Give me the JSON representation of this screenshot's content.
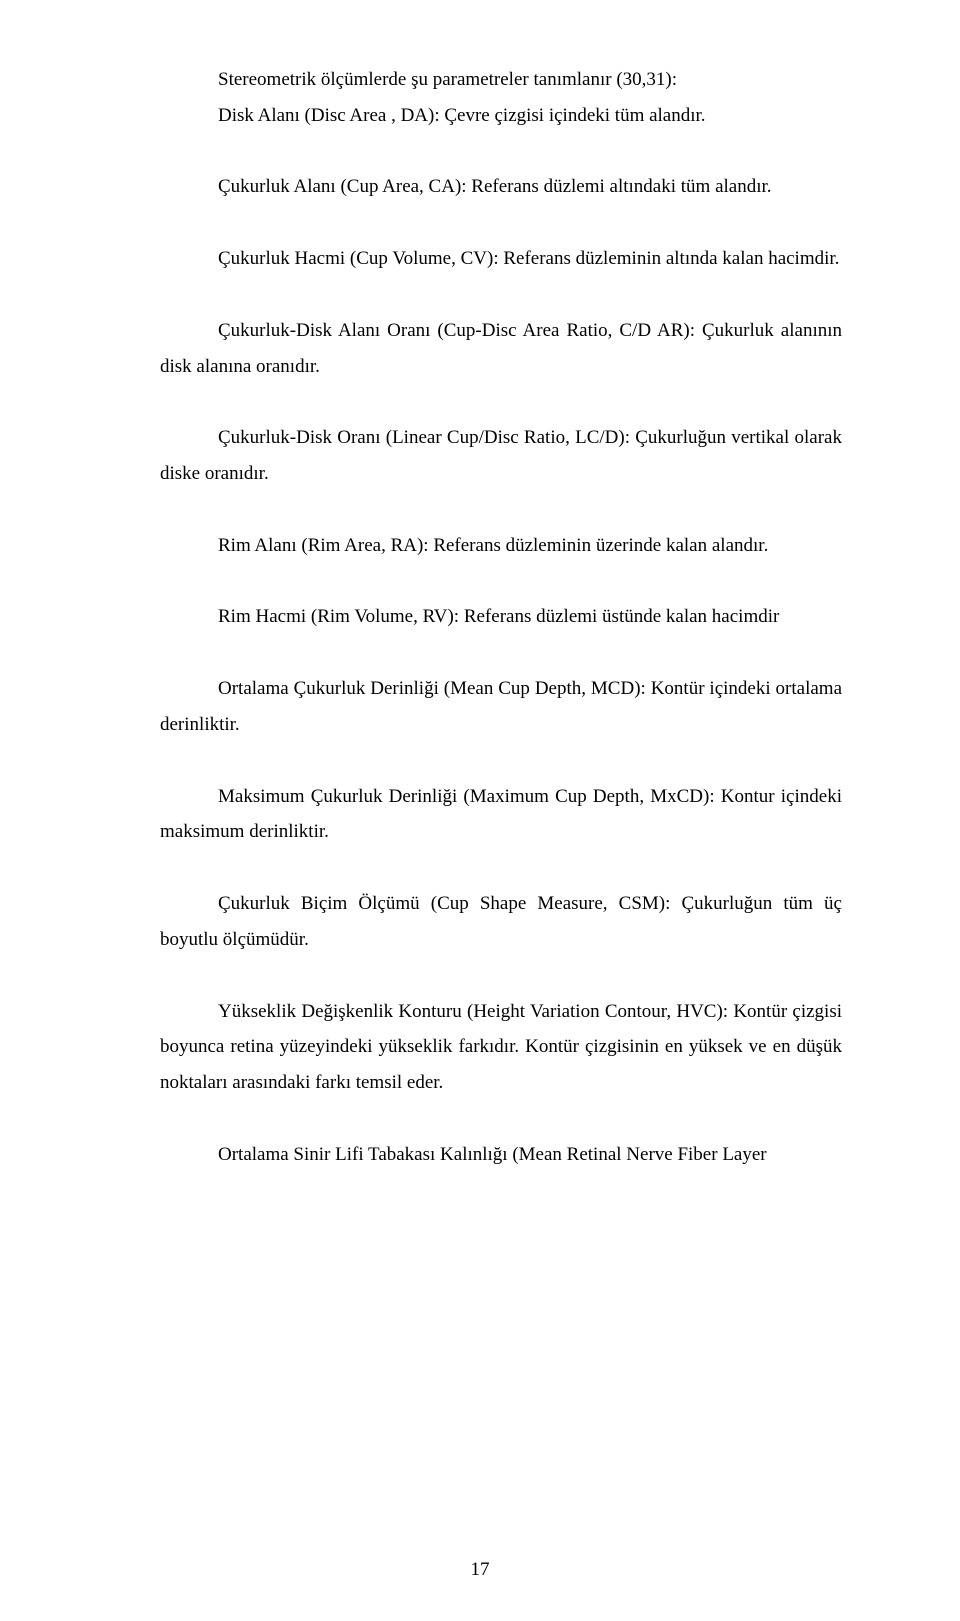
{
  "page": {
    "number": "17",
    "paragraphs": {
      "p1a": "Stereometrik ölçümlerde şu parametreler tanımlanır (30,31):",
      "p1b": "Disk Alanı (Disc Area , DA): Çevre çizgisi içindeki tüm alandır.",
      "p2": "Çukurluk Alanı (Cup Area, CA): Referans düzlemi altındaki tüm alandır.",
      "p3": "Çukurluk Hacmi (Cup Volume, CV): Referans düzleminin altında kalan hacimdir.",
      "p4": "Çukurluk-Disk Alanı Oranı (Cup-Disc Area Ratio, C/D AR): Çukurluk alanının disk alanına oranıdır.",
      "p5": "Çukurluk-Disk Oranı (Linear Cup/Disc Ratio, LC/D): Çukurluğun vertikal olarak diske oranıdır.",
      "p6": "Rim Alanı (Rim Area, RA): Referans düzleminin üzerinde kalan alandır.",
      "p7": "Rim Hacmi (Rim Volume, RV): Referans düzlemi üstünde kalan hacimdir",
      "p8": "Ortalama Çukurluk Derinliği (Mean Cup Depth, MCD): Kontür içindeki ortalama derinliktir.",
      "p9": "Maksimum Çukurluk Derinliği (Maximum Cup Depth, MxCD): Kontur içindeki maksimum derinliktir.",
      "p10": "Çukurluk Biçim Ölçümü (Cup Shape Measure, CSM): Çukurluğun tüm üç boyutlu ölçümüdür.",
      "p11": "Yükseklik Değişkenlik Konturu (Height Variation Contour, HVC): Kontür çizgisi boyunca retina yüzeyindeki yükseklik farkıdır. Kontür çizgisinin en yüksek ve en düşük noktaları arasındaki farkı temsil eder.",
      "p12": "Ortalama Sinir Lifi Tabakası Kalınlığı (Mean Retinal Nerve Fiber Layer"
    }
  },
  "style": {
    "font_family": "Times New Roman",
    "font_size_pt": 14,
    "text_color": "#000000",
    "background_color": "#ffffff",
    "line_height": 1.88,
    "text_align": "justify"
  }
}
